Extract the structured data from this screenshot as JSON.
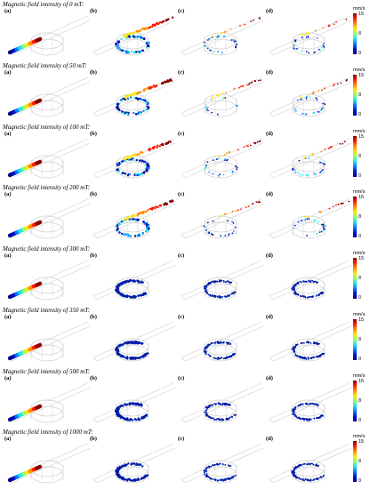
{
  "figure": {
    "colorbar": {
      "unit": "mm/s",
      "ticks": [
        "15",
        "8",
        "0"
      ]
    },
    "panel_labels": [
      "(a)",
      "(b)",
      "(c)",
      "(d)"
    ],
    "rows": [
      {
        "title": "Magnetic field intensity of 0 mT:"
      },
      {
        "title": "Magnetic field intensity of 50 mT:"
      },
      {
        "title": "Magnetic field intensity of 100 mT:"
      },
      {
        "title": "Magnetic field intensity of 200 mT:"
      },
      {
        "title": "Magnetic field intensity of 300 mT:"
      },
      {
        "title": "Magnetic field intensity of 350 mT:"
      },
      {
        "title": "Magnetic field intensity of 500 mT:"
      },
      {
        "title": "Magnetic field intensity of 1000 mT:"
      }
    ],
    "colors": {
      "velocity_colormap": [
        "#00008a",
        "#0014c8",
        "#0a78ff",
        "#19e6e6",
        "#8cff6e",
        "#ffe600",
        "#ff8c00",
        "#ff1a00",
        "#8a0000"
      ],
      "geometry": "#cfcfcf",
      "captured_particles": "#001ea8"
    }
  }
}
